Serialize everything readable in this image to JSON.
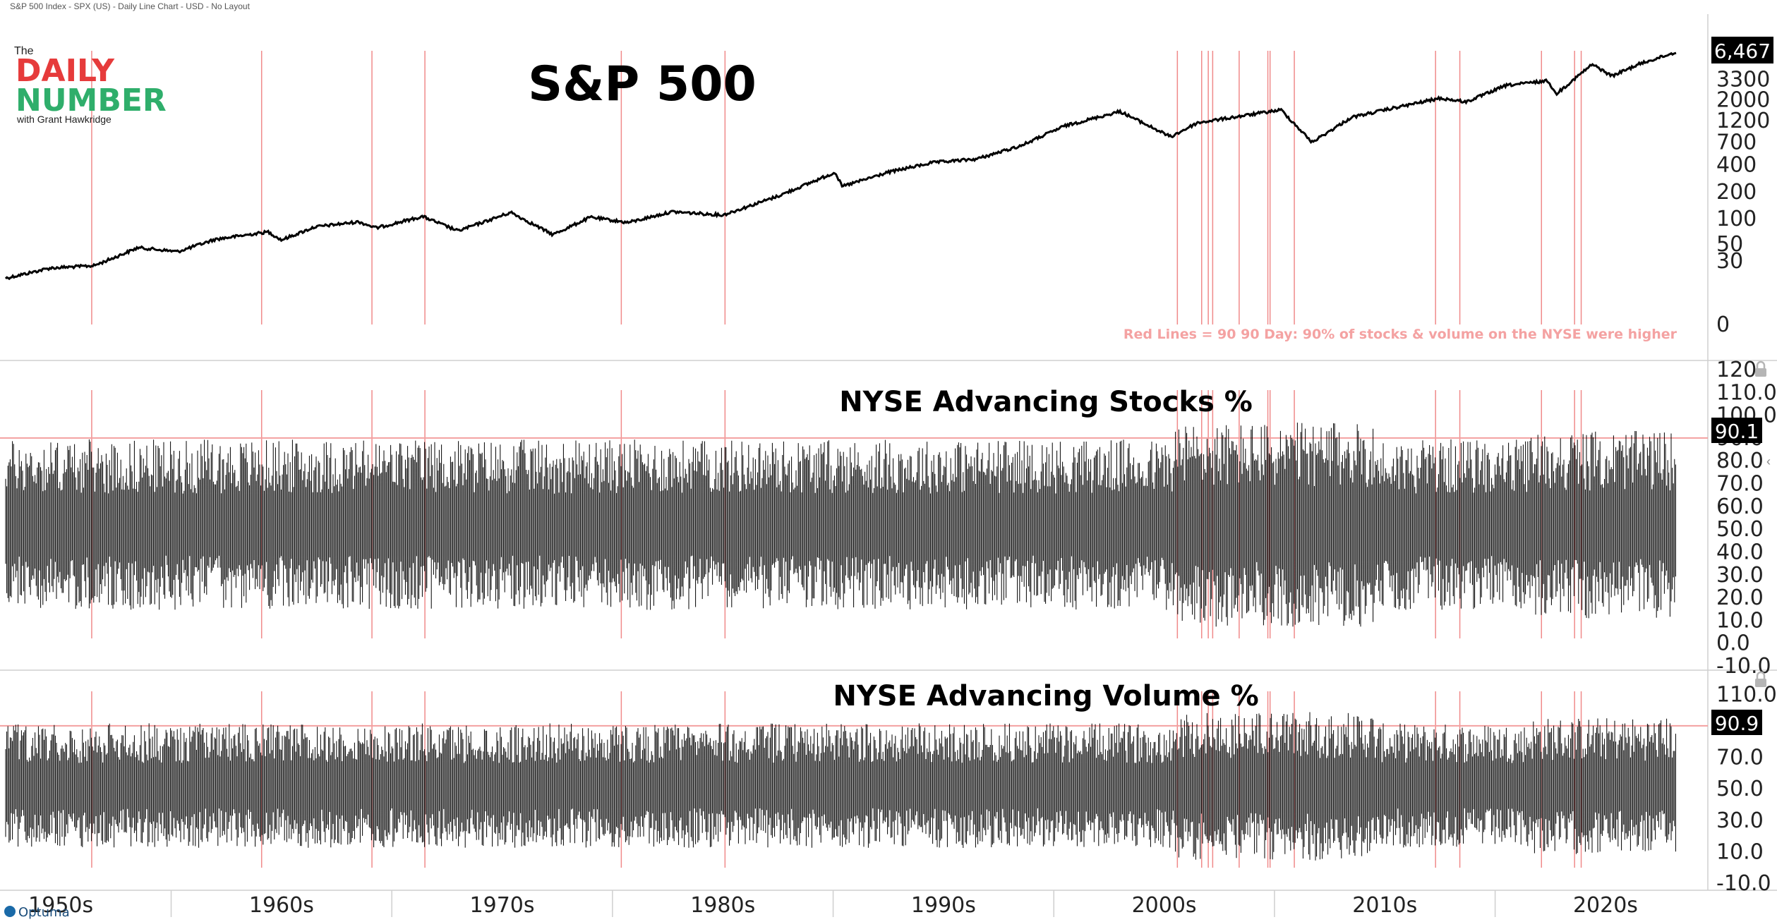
{
  "header": {
    "caption": "S&P 500 Index - SPX (US) - Daily Line Chart - USD - No Layout"
  },
  "logo": {
    "the": "The",
    "daily": "DAILY",
    "number": "NUMBER",
    "byline": "with Grant Hawkridge"
  },
  "brand": {
    "name": "Optuma"
  },
  "colors": {
    "price_line": "#000000",
    "event_line": "#f08a8a",
    "threshold_line": "#f3a0a0",
    "daily_red": "#e63b3b",
    "number_green": "#2fae6b",
    "badge_bg": "#000000"
  },
  "chart_data": [
    {
      "type": "line",
      "title": "S&P 500",
      "annotation": "Red Lines = 90 90 Day: 90% of stocks & volume on the NYSE were higher",
      "last_value": "6,467",
      "y_scale": "log",
      "y_ticks": [
        "3300",
        "2000",
        "1200",
        "700",
        "400",
        "200",
        "100",
        "50",
        "30",
        "0"
      ],
      "x": [
        1950,
        1952,
        1954,
        1956,
        1957.8,
        1959.5,
        1961.9,
        1962.5,
        1964,
        1966,
        1966.8,
        1968.9,
        1970.5,
        1972.9,
        1974.8,
        1976.5,
        1978.2,
        1980.2,
        1982.5,
        1985,
        1987.6,
        1987.9,
        1990,
        1992,
        1994,
        1996,
        1998,
        2000.5,
        2002.8,
        2004,
        2007.8,
        2009.2,
        2011,
        2013,
        2015,
        2016.2,
        2018,
        2019.9,
        2020.25,
        2021.9,
        2022.8,
        2024,
        2025.7
      ],
      "values": [
        17,
        24,
        26,
        45,
        40,
        57,
        70,
        56,
        80,
        92,
        78,
        106,
        72,
        118,
        65,
        104,
        90,
        120,
        110,
        180,
        330,
        230,
        330,
        420,
        460,
        640,
        1050,
        1500,
        800,
        1130,
        1560,
        700,
        1300,
        1650,
        2080,
        1900,
        2850,
        3200,
        2300,
        4790,
        3600,
        4800,
        6467
      ]
    },
    {
      "type": "bar",
      "title": "NYSE Advancing Stocks %",
      "last_value": "90.1",
      "threshold": 90,
      "ylim": [
        -10,
        120
      ],
      "y_ticks": [
        "120",
        "110.0",
        "100.0",
        "90.0",
        "80.0",
        "70.0",
        "60.0",
        "50.0",
        "40.0",
        "30.0",
        "20.0",
        "10.0",
        "0.0",
        "-10.0"
      ]
    },
    {
      "type": "bar",
      "title": "NYSE Advancing Volume %",
      "last_value": "90.9",
      "threshold": 90,
      "ylim": [
        -10,
        120
      ],
      "y_ticks": [
        "110.0",
        "90.0",
        "70.0",
        "50.0",
        "30.0",
        "10.0",
        "-10.0"
      ]
    }
  ],
  "x_axis": {
    "labels": [
      "1950s",
      "1960s",
      "1970s",
      "1980s",
      "1990s",
      "2000s",
      "2010s",
      "2020s"
    ]
  },
  "event_years": [
    1953.9,
    1961.6,
    1966.6,
    1969.0,
    1977.9,
    1982.6,
    2003.1,
    2004.2,
    2004.5,
    2004.7,
    2005.9,
    2007.2,
    2007.3,
    2008.4,
    2014.8,
    2015.9,
    2019.6,
    2021.1,
    2021.4
  ]
}
